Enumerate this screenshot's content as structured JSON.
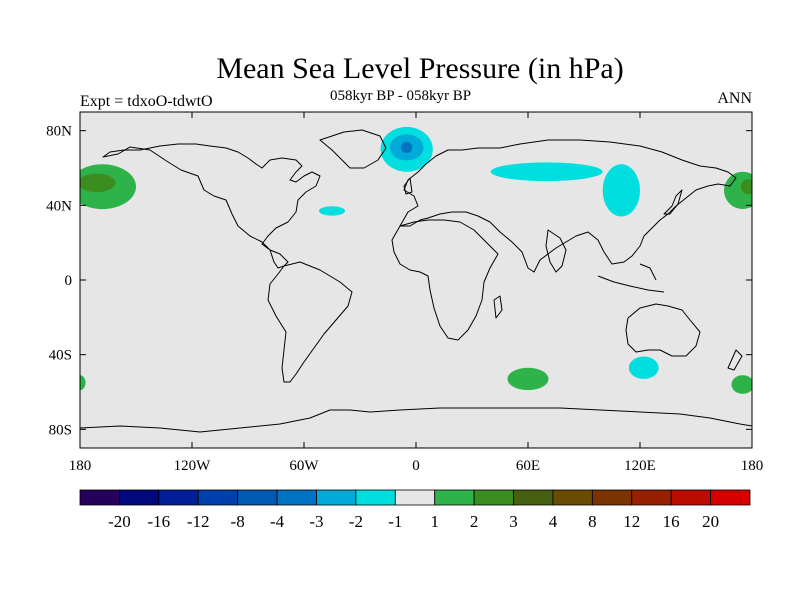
{
  "title": "Mean Sea Level Pressure (in hPa)",
  "subtitle": "058kyr BP - 058kyr BP",
  "left_label": "Expt = tdxoO-tdwtO",
  "right_label": "ANN",
  "map": {
    "projection": "cylindrical-equidistant",
    "lon_range": [
      -180,
      180
    ],
    "lat_range": [
      -90,
      90
    ],
    "background_color": "#e6e6e6",
    "coastline_color": "#000000",
    "lat_ticks": [
      {
        "lat": 80,
        "label": "80N"
      },
      {
        "lat": 40,
        "label": "40N"
      },
      {
        "lat": 0,
        "label": "0"
      },
      {
        "lat": -40,
        "label": "40S"
      },
      {
        "lat": -80,
        "label": "80S"
      }
    ],
    "lon_ticks": [
      {
        "lon": -180,
        "label": "180"
      },
      {
        "lon": -120,
        "label": "120W"
      },
      {
        "lon": -60,
        "label": "60W"
      },
      {
        "lon": 0,
        "label": "0"
      },
      {
        "lon": 60,
        "label": "60E"
      },
      {
        "lon": 120,
        "label": "120E"
      },
      {
        "lon": 180,
        "label": "180"
      }
    ]
  },
  "anomaly_regions": [
    {
      "name": "north-pacific-high-west",
      "lon": -168,
      "lat": 50,
      "rlon": 18,
      "rlat": 12,
      "color": "#2db34a"
    },
    {
      "name": "north-pacific-high-west-core",
      "lon": -171,
      "lat": 52,
      "rlon": 10,
      "rlat": 5,
      "color": "#3b8d20"
    },
    {
      "name": "north-pacific-high-east",
      "lon": 175,
      "lat": 48,
      "rlon": 10,
      "rlat": 10,
      "color": "#2db34a"
    },
    {
      "name": "north-pacific-high-east-core",
      "lon": 178,
      "lat": 50,
      "rlon": 4,
      "rlat": 4,
      "color": "#3b8d20"
    },
    {
      "name": "greenland-low",
      "lon": -5,
      "lat": 70,
      "rlon": 14,
      "rlat": 12,
      "color": "#00dedf"
    },
    {
      "name": "greenland-low-mid",
      "lon": -5,
      "lat": 71,
      "rlon": 9,
      "rlat": 7,
      "color": "#00abda"
    },
    {
      "name": "greenland-low-core",
      "lon": -5,
      "lat": 71,
      "rlon": 3,
      "rlat": 3,
      "color": "#0072c3"
    },
    {
      "name": "atlantic-low",
      "lon": -45,
      "lat": 37,
      "rlon": 7,
      "rlat": 2.5,
      "color": "#00dedf"
    },
    {
      "name": "siberia-low",
      "lon": 70,
      "lat": 58,
      "rlon": 30,
      "rlat": 5,
      "color": "#00dedf"
    },
    {
      "name": "east-asia-low",
      "lon": 110,
      "lat": 48,
      "rlon": 10,
      "rlat": 14,
      "color": "#00dedf"
    },
    {
      "name": "south-indian-high",
      "lon": 60,
      "lat": -53,
      "rlon": 11,
      "rlat": 6,
      "color": "#2db34a"
    },
    {
      "name": "south-australia-low",
      "lon": 122,
      "lat": -47,
      "rlon": 8,
      "rlat": 6,
      "color": "#00dedf"
    },
    {
      "name": "south-pacific-high-east",
      "lon": 175,
      "lat": -56,
      "rlon": 6,
      "rlat": 5,
      "color": "#2db34a"
    },
    {
      "name": "south-pacific-high-west",
      "lon": -180,
      "lat": -55,
      "rlon": 3,
      "rlat": 4,
      "color": "#2db34a"
    }
  ],
  "colorbar": {
    "colors": [
      "#26005b",
      "#00087e",
      "#001e98",
      "#0040ad",
      "#0059b3",
      "#0072c3",
      "#00abda",
      "#00dedf",
      "#e6e6e6",
      "#2db34a",
      "#3b8d20",
      "#475f10",
      "#6a4b02",
      "#7b3400",
      "#962000",
      "#bb0d00",
      "#d60000"
    ],
    "labels": [
      "-20",
      "-16",
      "-12",
      "-8",
      "-4",
      "-3",
      "-2",
      "-1",
      "1",
      "2",
      "3",
      "4",
      "8",
      "12",
      "16",
      "20"
    ]
  }
}
